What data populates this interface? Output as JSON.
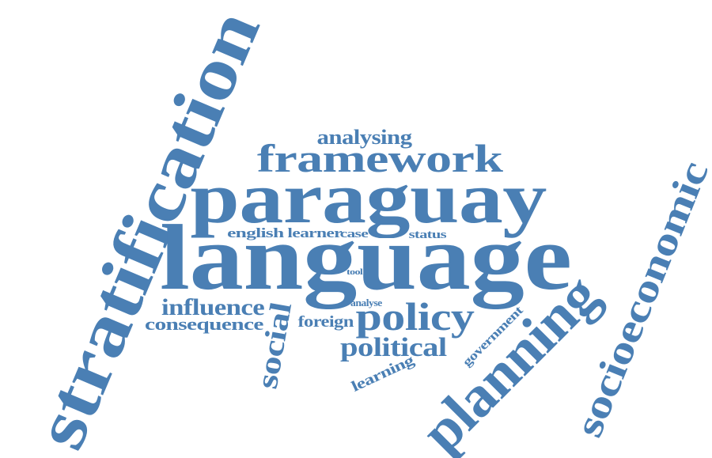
{
  "color": "#4a7fb4",
  "words": [
    {
      "id": "stratification",
      "text": "stratification"
    },
    {
      "id": "language",
      "text": "language"
    },
    {
      "id": "paraguay",
      "text": "paraguay"
    },
    {
      "id": "framework",
      "text": "framework"
    },
    {
      "id": "analysing",
      "text": "analysing"
    },
    {
      "id": "socioeconomic",
      "text": "socioeconomic"
    },
    {
      "id": "planning",
      "text": "planning"
    },
    {
      "id": "policy",
      "text": "policy"
    },
    {
      "id": "political",
      "text": "political"
    },
    {
      "id": "influence",
      "text": "influence"
    },
    {
      "id": "consequence",
      "text": "consequence"
    },
    {
      "id": "social",
      "text": "social"
    },
    {
      "id": "foreign",
      "text": "foreign"
    },
    {
      "id": "analyse",
      "text": "analyse"
    },
    {
      "id": "english",
      "text": "english"
    },
    {
      "id": "learner",
      "text": "learner"
    },
    {
      "id": "case",
      "text": "case"
    },
    {
      "id": "status",
      "text": "status"
    },
    {
      "id": "tool",
      "text": "tool"
    },
    {
      "id": "government",
      "text": "government"
    },
    {
      "id": "learning",
      "text": "learning"
    }
  ]
}
